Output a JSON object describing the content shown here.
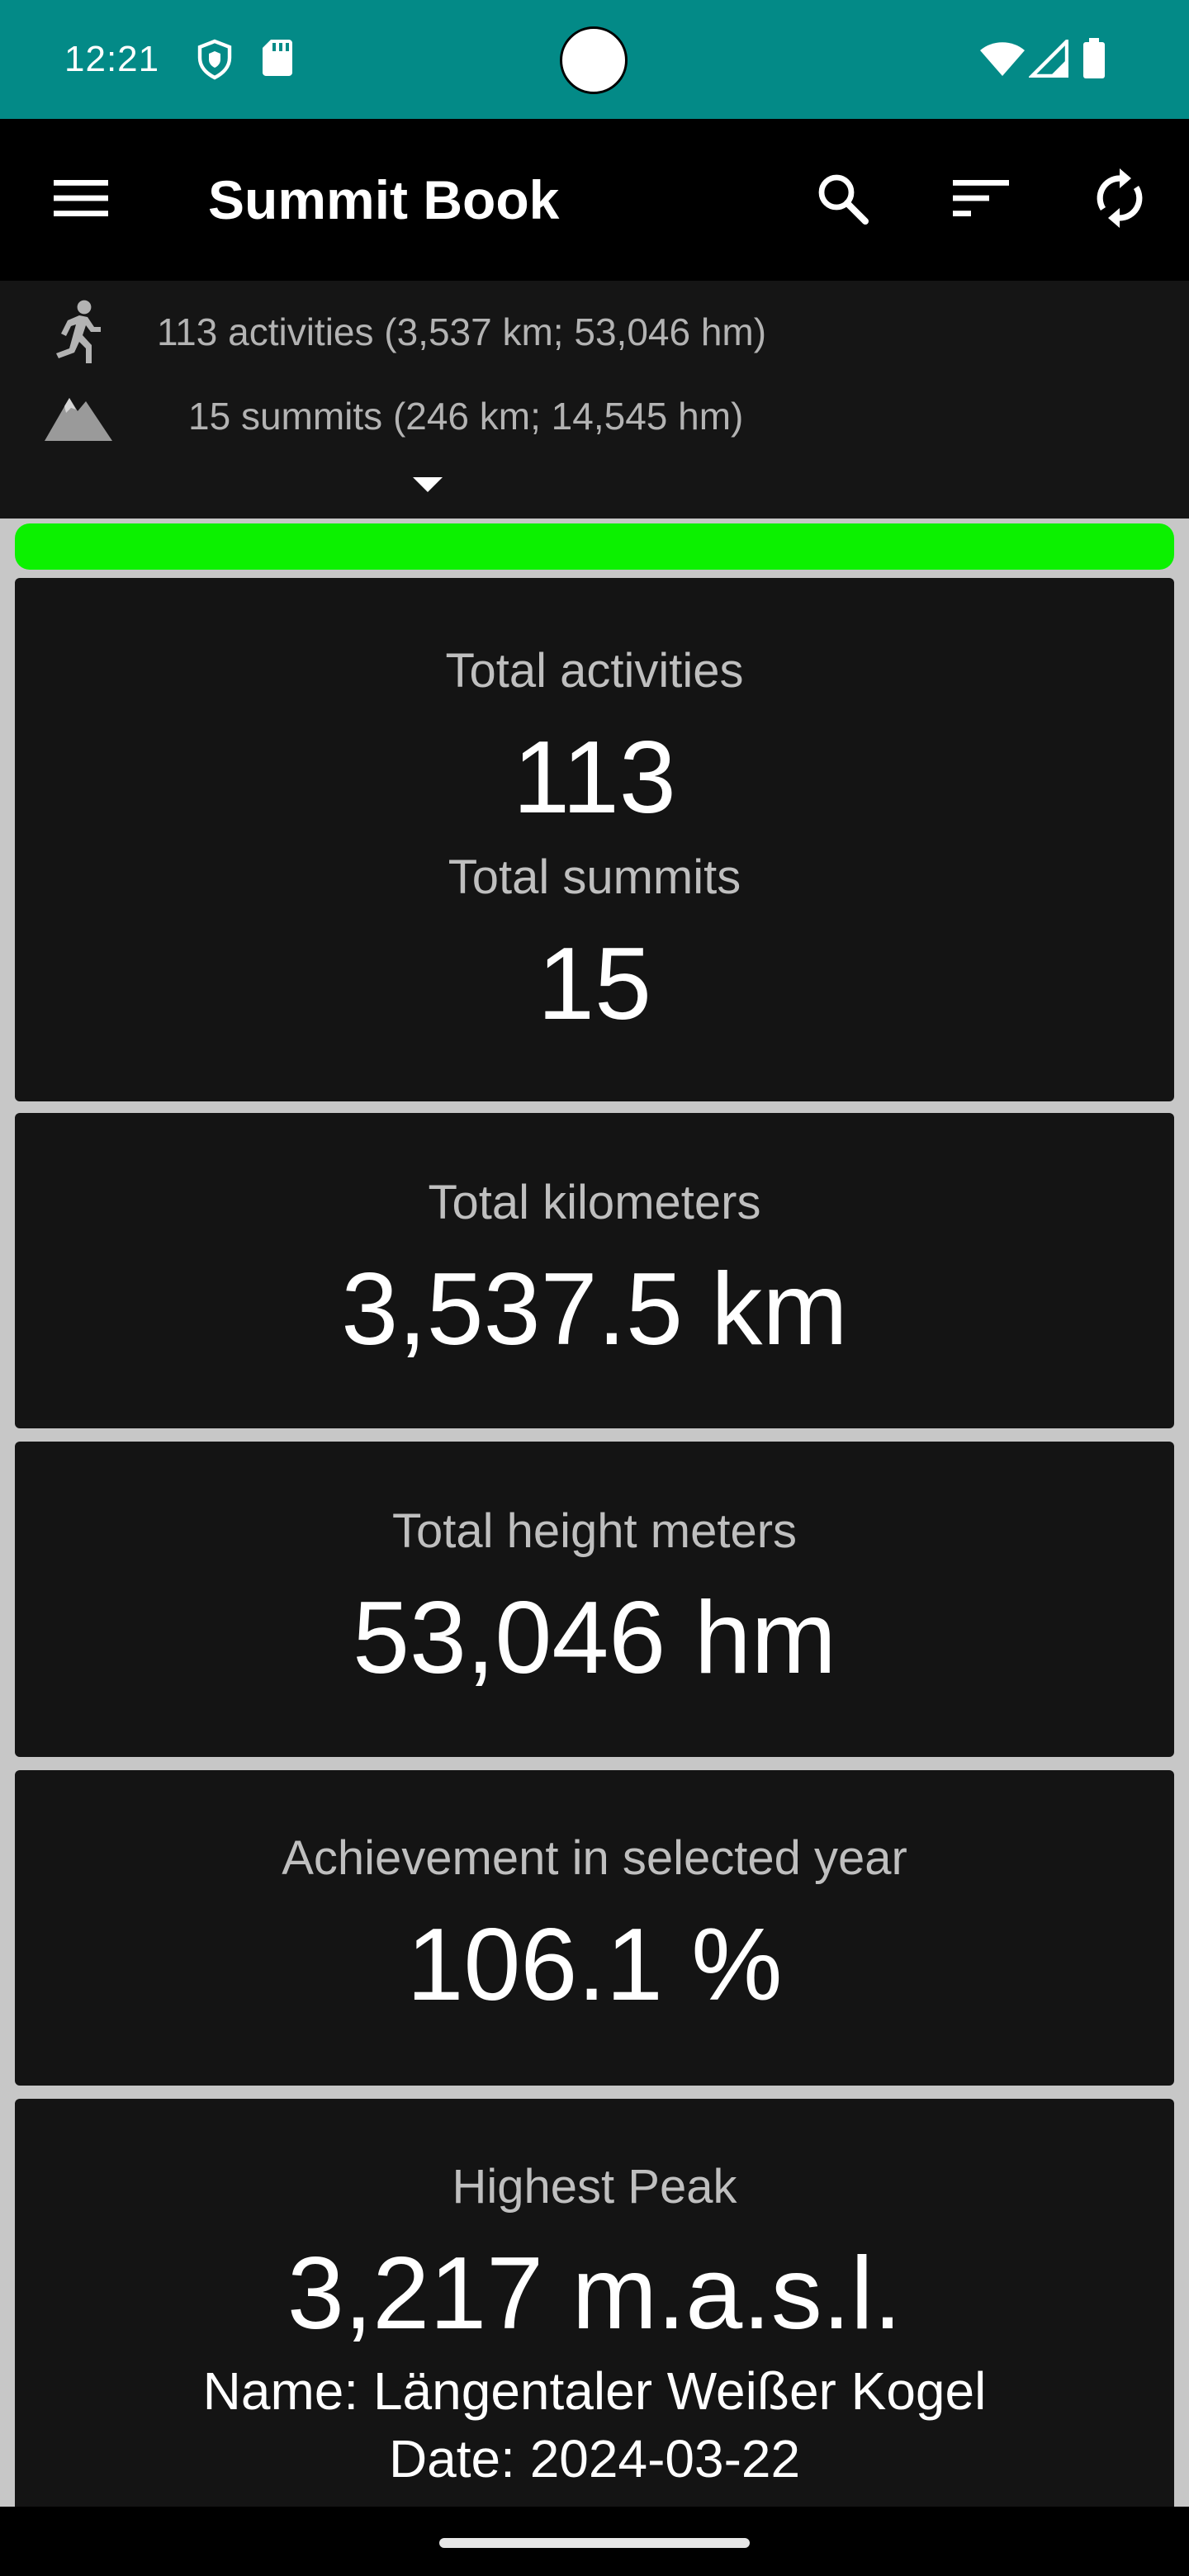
{
  "status_bar": {
    "time": "12:21",
    "icons": [
      "shield-icon",
      "sd-card-icon",
      "wifi-icon",
      "signal-icon",
      "battery-icon"
    ],
    "background": "#038a87"
  },
  "toolbar": {
    "title": "Summit Book",
    "actions": [
      "menu-icon",
      "search-icon",
      "sort-icon",
      "sync-icon"
    ]
  },
  "summary": {
    "activities_line": "113 activities (3,537 km; 53,046 hm)",
    "summits_line": "15 summits (246 km; 14,545 hm)"
  },
  "progress": {
    "color": "#0cf100",
    "percent": 100
  },
  "cards": {
    "activities": {
      "label": "Total activities",
      "value": "113",
      "label2": "Total summits",
      "value2": "15"
    },
    "kilometers": {
      "label": "Total kilometers",
      "value": "3,537.5 km"
    },
    "height": {
      "label": "Total height meters",
      "value": "53,046 hm"
    },
    "achievement": {
      "label": "Achievement in selected year",
      "value": "106.1 %"
    },
    "highest_peak": {
      "label": "Highest Peak",
      "value": "3,217 m.a.s.l.",
      "name": "Name: Längentaler Weißer Kogel",
      "date": "Date: 2024-03-22"
    }
  }
}
